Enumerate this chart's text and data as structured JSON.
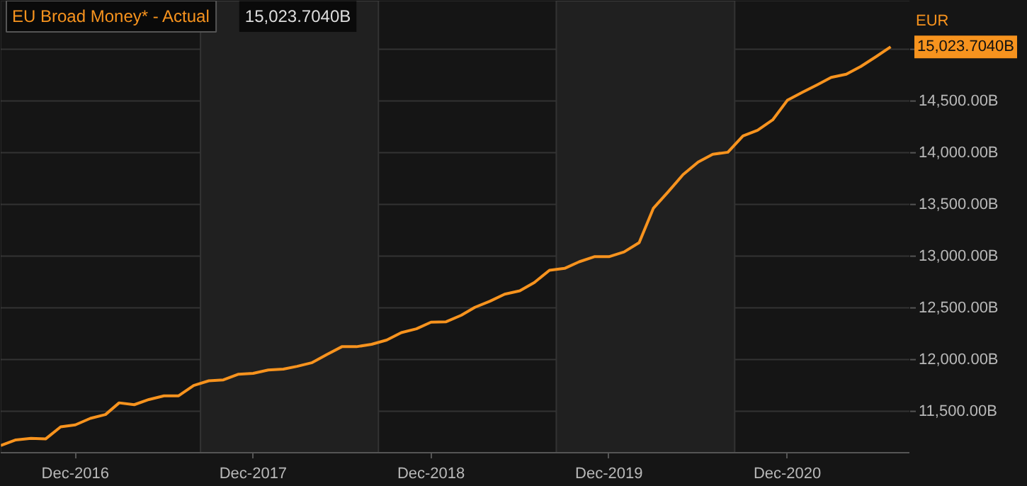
{
  "chart_data": {
    "type": "line",
    "title": "EU Broad Money* - Actual",
    "subtitle": "15,023.7040B",
    "ylabel": "EUR",
    "x": [
      "2016-07",
      "2016-08",
      "2016-09",
      "2016-10",
      "2016-11",
      "2016-12",
      "2017-01",
      "2017-02",
      "2017-03",
      "2017-04",
      "2017-05",
      "2017-06",
      "2017-07",
      "2017-08",
      "2017-09",
      "2017-10",
      "2017-11",
      "2017-12",
      "2018-01",
      "2018-02",
      "2018-03",
      "2018-04",
      "2018-05",
      "2018-06",
      "2018-07",
      "2018-08",
      "2018-09",
      "2018-10",
      "2018-11",
      "2018-12",
      "2019-01",
      "2019-02",
      "2019-03",
      "2019-04",
      "2019-05",
      "2019-06",
      "2019-07",
      "2019-08",
      "2019-09",
      "2019-10",
      "2019-11",
      "2019-12",
      "2020-01",
      "2020-02",
      "2020-03",
      "2020-04",
      "2020-05",
      "2020-06",
      "2020-07",
      "2020-08",
      "2020-09",
      "2020-10",
      "2020-11",
      "2020-12",
      "2021-01",
      "2021-02",
      "2021-03",
      "2021-04",
      "2021-05",
      "2021-06",
      "2021-07"
    ],
    "series": [
      {
        "color": "#f7931e",
        "values": [
          11170,
          11224,
          11238,
          11233,
          11350,
          11369,
          11432,
          11469,
          11582,
          11564,
          11614,
          11650,
          11650,
          11750,
          11795,
          11804,
          11859,
          11867,
          11900,
          11908,
          11935,
          11971,
          12049,
          12125,
          12125,
          12148,
          12189,
          12261,
          12298,
          12362,
          12366,
          12429,
          12506,
          12565,
          12633,
          12665,
          12746,
          12864,
          12882,
          12946,
          12995,
          12995,
          13041,
          13131,
          13462,
          13625,
          13788,
          13910,
          13986,
          14005,
          14162,
          14218,
          14318,
          14507,
          14584,
          14658,
          14728,
          14759,
          14835,
          14929,
          15023.704
        ]
      }
    ],
    "annotations": [
      "15,023.7040B"
    ],
    "xlim": [
      "2016-07",
      "2021-08-10"
    ],
    "xticks": [
      {
        "value": "2016-12",
        "label": "Dec-2016"
      },
      {
        "value": "2017-12",
        "label": "Dec-2017"
      },
      {
        "value": "2018-12",
        "label": "Dec-2018"
      },
      {
        "value": "2019-12",
        "label": "Dec-2019"
      },
      {
        "value": "2020-12",
        "label": "Dec-2020"
      }
    ],
    "ylim": [
      11100,
      15470
    ],
    "yticks": [
      {
        "value": 11500,
        "label": "11,500.00B"
      },
      {
        "value": 12000,
        "label": "12,000.00B"
      },
      {
        "value": 12500,
        "label": "12,500.00B"
      },
      {
        "value": 13000,
        "label": "13,000.00B"
      },
      {
        "value": 13500,
        "label": "13,500.00B"
      },
      {
        "value": 14000,
        "label": "14,000.00B"
      },
      {
        "value": 14500,
        "label": "14,500.00B"
      },
      {
        "value": 15000,
        "label": null
      }
    ],
    "bands": [
      {
        "axis": "x",
        "from": "2017-08-15",
        "to": "2018-08-15",
        "color": "#202020"
      },
      {
        "axis": "x",
        "from": "2019-08-15",
        "to": "2020-08-15",
        "color": "#202020"
      }
    ],
    "grid": "y",
    "marker": "none",
    "line_style": "solid"
  }
}
